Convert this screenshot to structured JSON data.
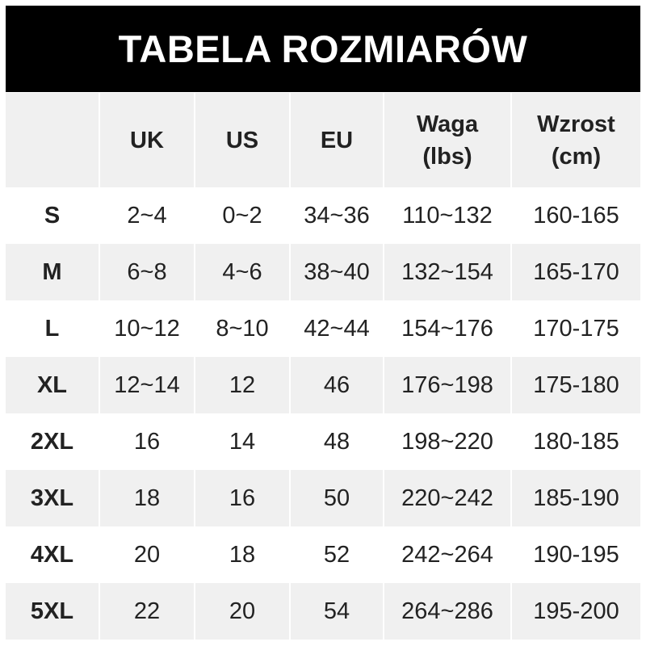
{
  "title": "TABELA ROZMIARÓW",
  "headers": [
    "",
    "UK",
    "US",
    "EU",
    "Waga\n(lbs)",
    "Wzrost\n(cm)"
  ],
  "rows": [
    [
      "S",
      "2~4",
      "0~2",
      "34~36",
      "110~132",
      "160-165"
    ],
    [
      "M",
      "6~8",
      "4~6",
      "38~40",
      "132~154",
      "165-170"
    ],
    [
      "L",
      "10~12",
      "8~10",
      "42~44",
      "154~176",
      "170-175"
    ],
    [
      "XL",
      "12~14",
      "12",
      "46",
      "176~198",
      "175-180"
    ],
    [
      "2XL",
      "16",
      "14",
      "48",
      "198~220",
      "180-185"
    ],
    [
      "3XL",
      "18",
      "16",
      "50",
      "220~242",
      "185-190"
    ],
    [
      "4XL",
      "20",
      "18",
      "52",
      "242~264",
      "190-195"
    ],
    [
      "5XL",
      "22",
      "20",
      "54",
      "264~286",
      "195-200"
    ]
  ],
  "colors": {
    "header_bg": "#000000",
    "stripe": "#f0f0f0",
    "text": "#222222"
  }
}
